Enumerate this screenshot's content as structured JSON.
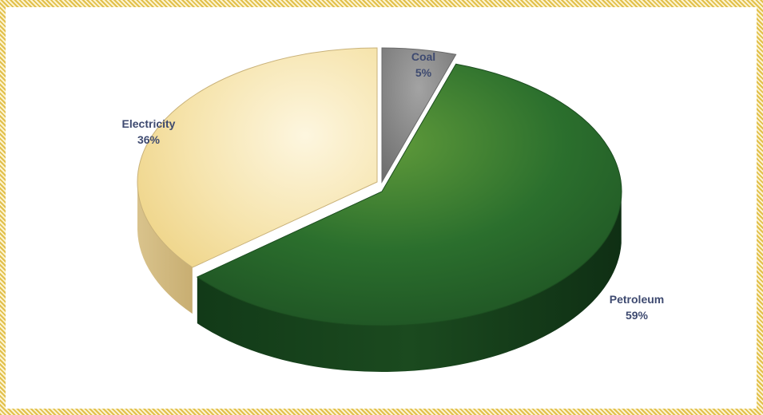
{
  "chart_data": {
    "type": "pie",
    "style": "3d-exploded",
    "slices": [
      {
        "label": "Coal",
        "value_label": "5%",
        "value": 5,
        "color": "#8a8a8a"
      },
      {
        "label": "Petroleum",
        "value_label": "59%",
        "value": 59,
        "color": "#2e7a2f"
      },
      {
        "label": "Electricity",
        "value_label": "36%",
        "value": 36,
        "color": "#f3dc9a"
      }
    ],
    "legend": "none"
  }
}
